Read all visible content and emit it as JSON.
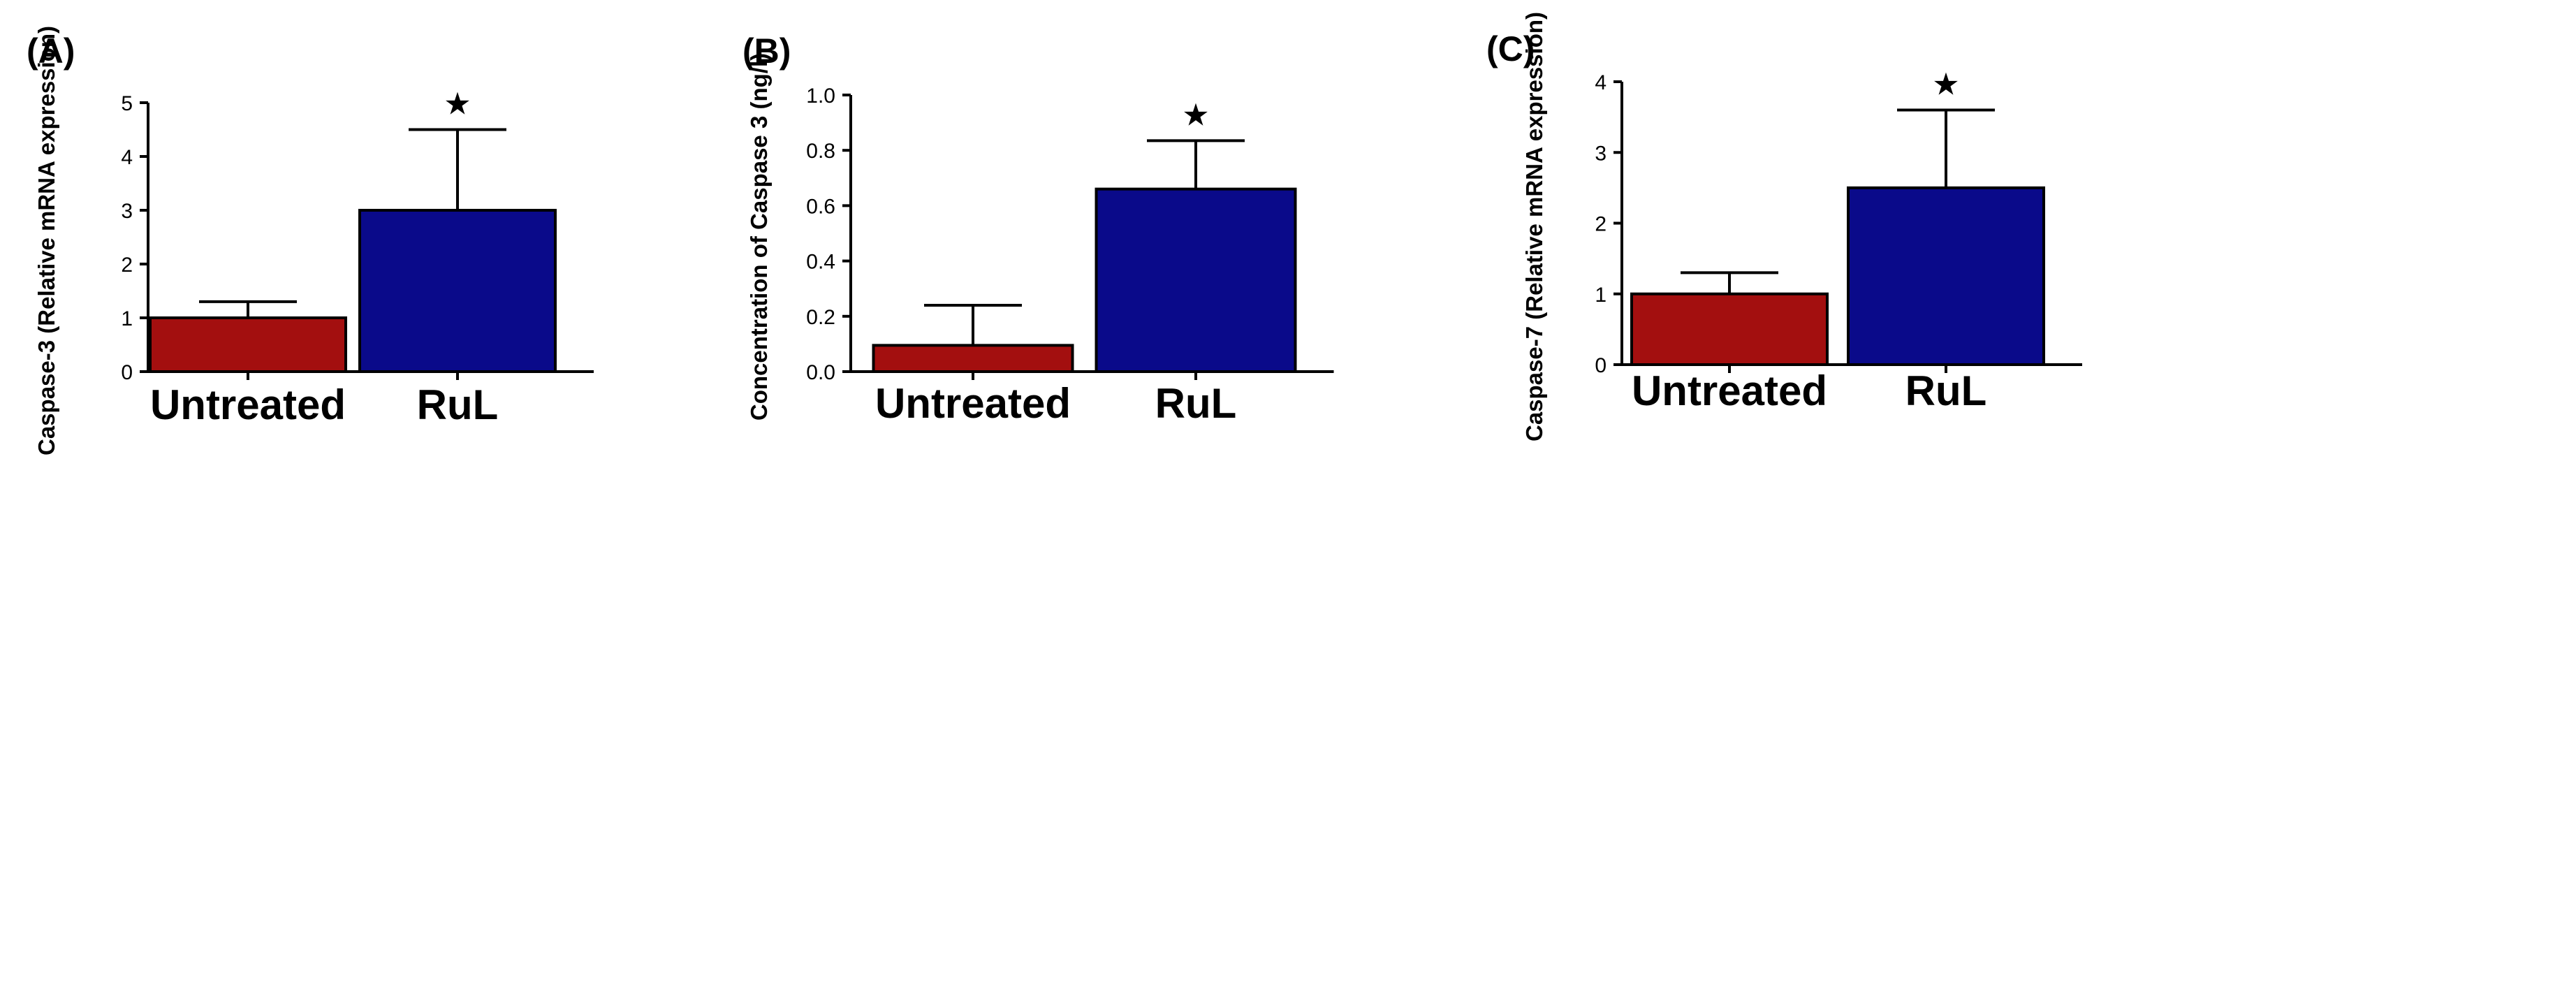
{
  "chart_data": [
    {
      "panel_label": "(A)",
      "type": "bar",
      "categories": [
        "Untreated",
        "RuL"
      ],
      "values": [
        1.0,
        3.0
      ],
      "errors": [
        0.3,
        1.5
      ],
      "significance": [
        "",
        "★"
      ],
      "ylabel": "Caspase-3 (Relative mRNA expression)",
      "ylim": [
        0,
        5
      ],
      "yticks": [
        0,
        1,
        2,
        3,
        4,
        5
      ],
      "ytick_labels": [
        "0",
        "1",
        "2",
        "3",
        "4",
        "5"
      ],
      "colors": [
        "#a30f0f",
        "#0a0a8a"
      ]
    },
    {
      "panel_label": "(B)",
      "type": "bar",
      "categories": [
        "Untreated",
        "RuL"
      ],
      "values": [
        0.095,
        0.66
      ],
      "errors": [
        0.145,
        0.175
      ],
      "significance": [
        "",
        "★"
      ],
      "ylabel": "Concentration of Caspase 3 (ng/l)",
      "ylim": [
        0,
        1.0
      ],
      "yticks": [
        0,
        0.2,
        0.4,
        0.6,
        0.8,
        1.0
      ],
      "ytick_labels": [
        "0.0",
        "0.2",
        "0.4",
        "0.6",
        "0.8",
        "1.0"
      ],
      "colors": [
        "#a30f0f",
        "#0a0a8a"
      ]
    },
    {
      "panel_label": "(C)",
      "type": "bar",
      "categories": [
        "Untreated",
        "RuL"
      ],
      "values": [
        1.0,
        2.5
      ],
      "errors": [
        0.3,
        1.1
      ],
      "significance": [
        "",
        "★"
      ],
      "ylabel": "Caspase-7 (Relative mRNA expression)",
      "ylim": [
        0,
        4
      ],
      "yticks": [
        0,
        1,
        2,
        3,
        4
      ],
      "ytick_labels": [
        "0",
        "1",
        "2",
        "3",
        "4"
      ],
      "colors": [
        "#a30f0f",
        "#0a0a8a"
      ]
    }
  ]
}
